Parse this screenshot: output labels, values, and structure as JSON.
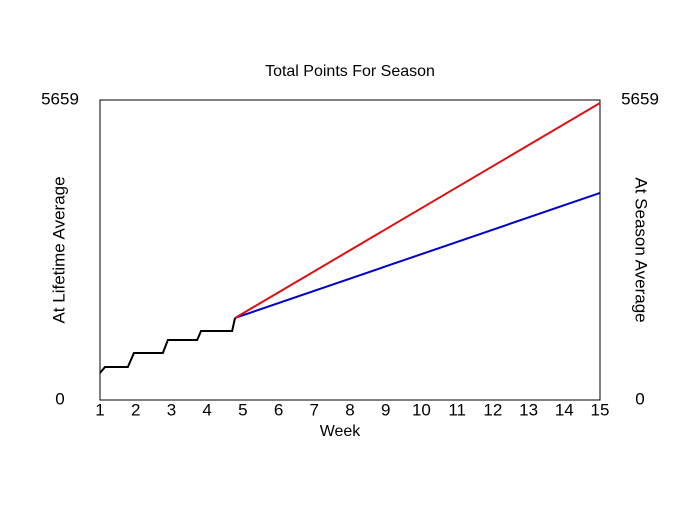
{
  "chart_data": {
    "type": "line",
    "title": "Total Points For Season",
    "xlabel": "Week",
    "ylabel": "At Lifetime Average",
    "y2label": "At Season Average",
    "xlim": [
      1,
      15
    ],
    "xticks": [
      1,
      2,
      3,
      4,
      5,
      6,
      7,
      8,
      9,
      10,
      11,
      12,
      13,
      14,
      15
    ],
    "ylim": [
      0,
      5659
    ],
    "yticks": [
      0,
      5659
    ],
    "y2lim": [
      0,
      5659
    ],
    "y2ticks": [
      0,
      5659
    ],
    "grid": false,
    "series": [
      {
        "name": "At Lifetime Average",
        "color": "#0000cc",
        "x": [
          4.78,
          15
        ],
        "values": [
          1547,
          3905
        ]
      },
      {
        "name": "At Season Average",
        "color": "#dd1111",
        "x": [
          4.78,
          15
        ],
        "values": [
          1547,
          5602
        ]
      },
      {
        "color": "#000000",
        "x": [
          1,
          1.14,
          1.78,
          1.95,
          2.76,
          2.9,
          3.72,
          3.83,
          4.7,
          4.78
        ],
        "values": [
          509,
          622,
          622,
          887,
          887,
          1132,
          1132,
          1302,
          1302,
          1547
        ]
      }
    ]
  }
}
